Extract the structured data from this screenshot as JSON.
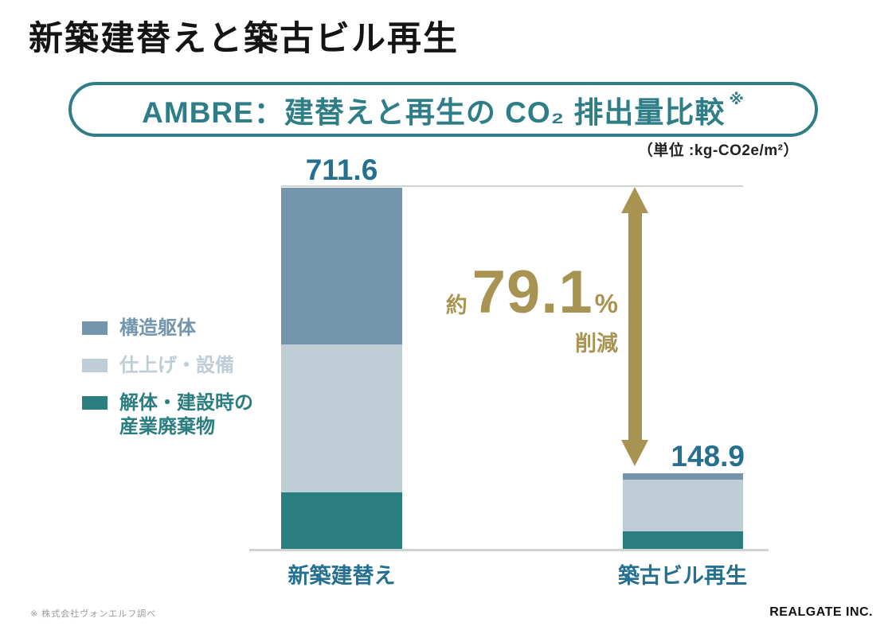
{
  "title": "新築建替えと築古ビル再生",
  "subtitle": {
    "text": "AMBRE：建替えと再生の CO₂ 排出量比較",
    "note_mark": "※"
  },
  "unit_label": "（単位 :kg-CO2e/m²）",
  "chart_data": {
    "type": "bar",
    "stacked": true,
    "orientation": "vertical",
    "categories": [
      "新築建替え",
      "築古ビル再生"
    ],
    "series": [
      {
        "name": "構造躯体",
        "color": "#7496ac",
        "values": [
          309,
          13
        ]
      },
      {
        "name": "仕上げ・設備",
        "color": "#bfcdd6",
        "values": [
          292,
          101
        ]
      },
      {
        "name": "解体・建設時の産業廃棄物",
        "color": "#2b7e80",
        "values": [
          110.6,
          34.9
        ]
      }
    ],
    "totals": [
      711.6,
      148.9
    ],
    "total_labels": [
      "711.6",
      "148.9"
    ],
    "ylim": [
      0,
      711.6
    ],
    "unit": "kg-CO2e/m²",
    "grid": false,
    "legend_position": "left",
    "annotation": {
      "prefix": "約",
      "value": "79.1",
      "suffix": "%",
      "label": "削減",
      "meaning": "reduction from 711.6 to 148.9"
    }
  },
  "legend": {
    "items": [
      {
        "lines": [
          "構造躯体"
        ],
        "color": "#7496ac"
      },
      {
        "lines": [
          "仕上げ・設備"
        ],
        "color": "#bfcdd6"
      },
      {
        "lines": [
          "解体・建設時の",
          "産業廃棄物"
        ],
        "color": "#2b7e80"
      }
    ]
  },
  "footnote": "※ 株式会社ヴォンエルフ調べ",
  "logo": "REALGATE INC.",
  "colors": {
    "teal-brand": "#2e7d87",
    "teal-text": "#256f90",
    "gold": "#a99352",
    "line-gray": "#cdd2d5",
    "axis-gray": "#d2d2d2",
    "footnote-gray": "#999999",
    "title-black": "#141414"
  }
}
